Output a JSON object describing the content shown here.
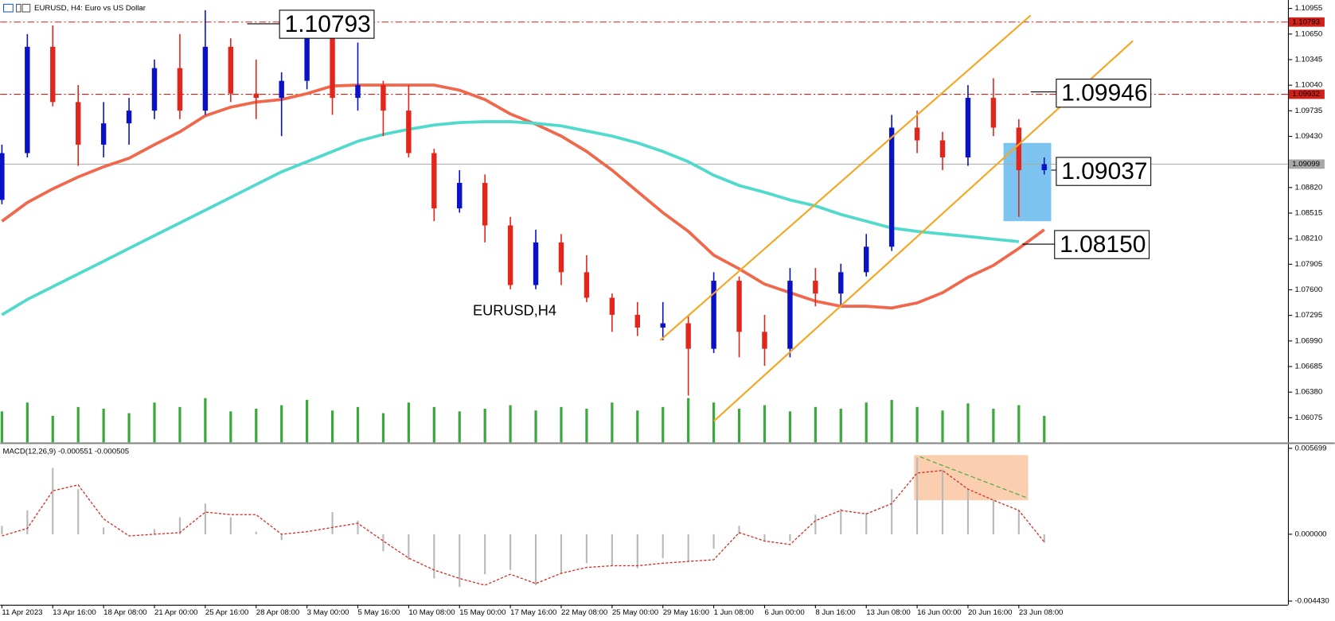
{
  "chart_data": [
    {
      "type": "candlestick",
      "title": "EURUSD, H4:  Euro vs US Dollar",
      "label": "EURUSD,H4",
      "x": [
        0,
        1,
        2,
        3,
        4,
        5,
        6,
        7,
        8,
        9,
        10,
        11,
        12,
        13,
        14,
        15,
        16,
        17,
        18,
        19,
        20,
        21,
        22,
        23,
        24,
        25,
        26,
        27,
        28,
        29,
        30,
        31,
        32,
        33,
        34,
        35,
        36,
        37,
        38,
        39,
        40,
        41
      ],
      "xlim": [
        -0.067,
        50.586
      ],
      "ylim": [
        1.05781,
        1.11056
      ],
      "yticks": [
        1.10955,
        {
          "value": 1.1065,
          "label": "1.10650"
        },
        1.10345,
        {
          "value": 1.1004,
          "label": "1.10040"
        },
        1.09735,
        {
          "value": 1.0943,
          "label": "1.09430"
        },
        {
          "value": 1.0882,
          "label": "1.08820"
        },
        1.08515,
        {
          "value": 1.0821,
          "label": "1.08210"
        },
        1.07905,
        {
          "value": 1.076,
          "label": "1.07600"
        },
        1.07295,
        {
          "value": 1.0699,
          "label": "1.06990"
        },
        1.06685,
        {
          "value": 1.0638,
          "label": "1.06380"
        },
        1.06075
      ],
      "open": [
        1.08672,
        1.0923,
        1.10498,
        1.09839,
        1.09331,
        1.09585,
        1.09737,
        1.10244,
        1.09737,
        1.10498,
        1.0994,
        1.09889,
        1.10092,
        1.10599,
        1.09889,
        1.10041,
        1.09737,
        1.0923,
        1.08571,
        1.08875,
        1.08368,
        1.07657,
        1.08165,
        1.0781,
        1.07505,
        1.07302,
        1.0715,
        1.07201,
        1.06897,
        1.07708,
        1.07099,
        1.06897,
        1.07708,
        1.07556,
        1.0781,
        1.08114,
        1.09534,
        1.09382,
        1.09179,
        1.09889,
        1.09534,
        1.09027
      ],
      "high": [
        1.09331,
        1.1065,
        1.10752,
        1.10041,
        1.09839,
        1.09889,
        1.10346,
        1.1065,
        1.10934,
        1.10599,
        1.10346,
        1.10194,
        1.10904,
        1.1065,
        1.10549,
        1.10092,
        1.10041,
        1.09281,
        1.09027,
        1.08976,
        1.08469,
        1.08317,
        1.08266,
        1.08013,
        1.07556,
        1.07454,
        1.07454,
        1.07302,
        1.0781,
        1.07759,
        1.07302,
        1.0786,
        1.0786,
        1.07911,
        1.08266,
        1.09686,
        1.09737,
        1.09484,
        1.10041,
        1.10123,
        1.09636,
        1.09179
      ],
      "low": [
        1.08621,
        1.09179,
        1.09788,
        1.09078,
        1.09179,
        1.09331,
        1.09636,
        1.09636,
        1.09686,
        1.09839,
        1.09636,
        1.09433,
        1.09991,
        1.09686,
        1.09737,
        1.09433,
        1.09179,
        1.08418,
        1.0852,
        1.08165,
        1.07607,
        1.07607,
        1.07657,
        1.07454,
        1.07099,
        1.07049,
        1.06998,
        1.06339,
        1.06846,
        1.06795,
        1.06694,
        1.06795,
        1.07404,
        1.07404,
        1.07759,
        1.08063,
        1.0923,
        1.09027,
        1.09078,
        1.09433,
        1.08469,
        1.08976
      ],
      "close": [
        1.0923,
        1.10498,
        1.09839,
        1.09331,
        1.09585,
        1.09737,
        1.10244,
        1.09737,
        1.10498,
        1.0994,
        1.09889,
        1.10092,
        1.10599,
        1.09889,
        1.10041,
        1.09737,
        1.0923,
        1.08571,
        1.08875,
        1.08368,
        1.07657,
        1.08165,
        1.0781,
        1.07505,
        1.07302,
        1.0715,
        1.07201,
        1.06897,
        1.07708,
        1.07099,
        1.06897,
        1.07708,
        1.07556,
        1.0781,
        1.08114,
        1.09534,
        1.09382,
        1.09179,
        1.09889,
        1.09534,
        1.09027,
        1.09099
      ],
      "up_color": "#0a12c8",
      "down_color": "#e3261c",
      "series": [
        {
          "type": "line",
          "color": "#f0674c",
          "values": [
            1.08418,
            1.08641,
            1.08804,
            1.08946,
            1.09067,
            1.09169,
            1.09331,
            1.09484,
            1.09676,
            1.09778,
            1.09839,
            1.09869,
            1.0994,
            1.10031,
            1.10041,
            1.10041,
            1.10041,
            1.10041,
            1.09981,
            1.09869,
            1.09697,
            1.09575,
            1.09433,
            1.0925,
            1.09027,
            1.08773,
            1.0852,
            1.08297,
            1.08013,
            1.0785,
            1.07668,
            1.07566,
            1.07465,
            1.07404,
            1.07404,
            1.07383,
            1.07444,
            1.07566,
            1.07749,
            1.07891,
            1.08094,
            1.08317
          ]
        },
        {
          "type": "line",
          "color": "#4fdacb",
          "values": [
            1.07302,
            1.07485,
            1.07637,
            1.07789,
            1.07941,
            1.08094,
            1.08246,
            1.08398,
            1.0855,
            1.08702,
            1.08855,
            1.09007,
            1.09128,
            1.0925,
            1.09372,
            1.09453,
            1.09514,
            1.09565,
            1.09595,
            1.09605,
            1.09605,
            1.09585,
            1.09555,
            1.09494,
            1.09433,
            1.09352,
            1.0925,
            1.09128,
            1.08966,
            1.08844,
            1.08763,
            1.08672,
            1.08601,
            1.08499,
            1.08418,
            1.08337,
            1.08297,
            1.08266,
            1.08236,
            1.08205,
            1.08175,
            null
          ]
        }
      ],
      "volume": {
        "color": "#3aa83a",
        "values": [
          35,
          45,
          30,
          40,
          38,
          33,
          45,
          40,
          50,
          35,
          38,
          42,
          48,
          36,
          40,
          33,
          45,
          40,
          35,
          38,
          42,
          36,
          40,
          38,
          45,
          36,
          40,
          50,
          45,
          38,
          42,
          35,
          40,
          38,
          45,
          48,
          40,
          36,
          44,
          38,
          42,
          30
        ]
      },
      "levels": [
        {
          "value": 1.10793,
          "color": "#d0201a",
          "style": "dashdot",
          "label_color": "#ffffff"
        },
        {
          "value": 1.09932,
          "color": "#d0201a",
          "style": "dashdot",
          "label_color": "#ffffff"
        },
        {
          "value": 1.09099,
          "color": "#a8a8a8",
          "style": "solid",
          "label_color": "#000000"
        }
      ],
      "price_labels": [
        1.10793,
        1.09946,
        1.09037,
        {
          "value": 1.0815,
          "label": "1.08150"
        }
      ]
    },
    {
      "type": "macd",
      "title": "MACD(12,26,9) -0.000551 -0.000505",
      "x": [
        0,
        1,
        2,
        3,
        4,
        5,
        6,
        7,
        8,
        9,
        10,
        11,
        12,
        13,
        14,
        15,
        16,
        17,
        18,
        19,
        20,
        21,
        22,
        23,
        24,
        25,
        26,
        27,
        28,
        29,
        30,
        31,
        32,
        33,
        34,
        35,
        36,
        37,
        38,
        39,
        40,
        41
      ],
      "xlim": [
        -0.067,
        50.586
      ],
      "xticks": [
        {
          "value": 0,
          "label": "11 Apr 2023"
        },
        {
          "value": 2,
          "label": "13 Apr 16:00"
        },
        {
          "value": 4,
          "label": "18 Apr 08:00"
        },
        {
          "value": 6,
          "label": "21 Apr 00:00"
        },
        {
          "value": 8,
          "label": "25 Apr 16:00"
        },
        {
          "value": 10,
          "label": "28 Apr 08:00"
        },
        {
          "value": 12,
          "label": "3 May 00:00"
        },
        {
          "value": 14,
          "label": "5 May 16:00"
        },
        {
          "value": 16,
          "label": "10 May 08:00"
        },
        {
          "value": 18,
          "label": "15 May 00:00"
        },
        {
          "value": 20,
          "label": "17 May 16:00"
        },
        {
          "value": 22,
          "label": "22 May 08:00"
        },
        {
          "value": 24,
          "label": "25 May 00:00"
        },
        {
          "value": 26,
          "label": "29 May 16:00"
        },
        {
          "value": 28,
          "label": "1 Jun 08:00"
        },
        {
          "value": 30,
          "label": "6 Jun 00:00"
        },
        {
          "value": 32,
          "label": "8 Jun 16:00"
        },
        {
          "value": 34,
          "label": "13 Jun 08:00"
        },
        {
          "value": 36,
          "label": "16 Jun 00:00"
        },
        {
          "value": 38,
          "label": "20 Jun 16:00"
        },
        {
          "value": 40,
          "label": "23 Jun 08:00"
        }
      ],
      "ylim": [
        -0.00468,
        0.00598
      ],
      "yticks": [
        0.005699,
        {
          "value": 0,
          "label": "0.000000"
        },
        {
          "value": -0.00443,
          "label": "-0.004430"
        }
      ],
      "histogram": {
        "color": "#b9b9b9",
        "values": [
          0.00056,
          0.00158,
          0.0044,
          0.00299,
          0.00045,
          0,
          0.00034,
          0.00113,
          0.00203,
          0.00113,
          0.00017,
          -0.00039,
          0,
          0.00147,
          0.0009,
          -0.00113,
          -0.00169,
          -0.00293,
          -0.0035,
          -0.00265,
          -0.00237,
          -0.00338,
          -0.00265,
          -0.00192,
          -0.00209,
          -0.00226,
          -0.00158,
          -0.0018,
          -0.00096,
          0.00056,
          -0.00051,
          -0.00045,
          0.0013,
          0.00169,
          0.00141,
          0.00299,
          0.00508,
          0.00429,
          0.00299,
          0.00226,
          0.00158,
          -0.00056
        ]
      },
      "signal": {
        "color": "#d42a20",
        "values": [
          -0.00011,
          0.00039,
          0.00288,
          0.00327,
          0.00102,
          -0.00011,
          0,
          0.00011,
          0.00147,
          0.0013,
          0.0013,
          0,
          0.00017,
          0.00045,
          0.00073,
          -0.00045,
          -0.00158,
          -0.00237,
          -0.00293,
          -0.00338,
          -0.00265,
          -0.00327,
          -0.00259,
          -0.0022,
          -0.00209,
          -0.00209,
          -0.00192,
          -0.0018,
          -0.00169,
          0.00011,
          -0.00045,
          -0.00068,
          0.0009,
          0.00158,
          0.00135,
          0.00203,
          0.00406,
          0.00423,
          0.00299,
          0.00226,
          0.00158,
          -0.00051
        ]
      }
    }
  ]
}
